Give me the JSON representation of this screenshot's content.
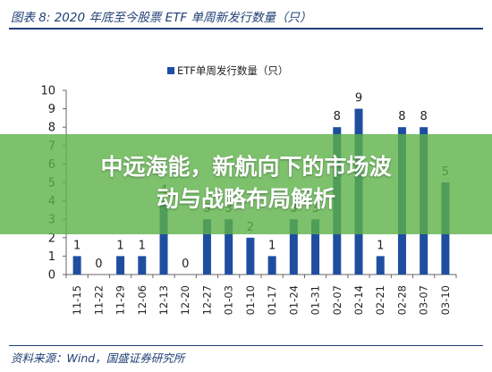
{
  "figure": {
    "title": "图表 8:  2020 年底至今股票 ETF 单周新发行数量（只）",
    "source": "资料来源：Wind，国盛证券研究所"
  },
  "banner": {
    "line1": "中远海能，新航向下的市场波",
    "line2": "动与战略布局解析"
  },
  "colors": {
    "bar": "#1f4ea1",
    "title": "#1f3f74",
    "banner": "#5cb248"
  },
  "chart_data": {
    "type": "bar",
    "categories": [
      "11-15",
      "11-22",
      "11-29",
      "12-06",
      "12-13",
      "12-20",
      "12-27",
      "01-03",
      "01-10",
      "01-17",
      "01-24",
      "01-31",
      "02-07",
      "02-14",
      "02-21",
      "02-28",
      "03-07",
      "03-10"
    ],
    "series": [
      {
        "name": "ETF单周发行数量（只）",
        "values": [
          1,
          0,
          1,
          1,
          4,
          0,
          3,
          3,
          2,
          1,
          3,
          3,
          8,
          9,
          1,
          8,
          8,
          5
        ]
      }
    ],
    "ylim": [
      0,
      10
    ],
    "yticks": [
      0,
      1,
      2,
      3,
      4,
      5,
      6,
      7,
      8,
      9,
      10
    ],
    "xlabel": "",
    "ylabel": "",
    "legend": "top-center",
    "grid": false
  }
}
